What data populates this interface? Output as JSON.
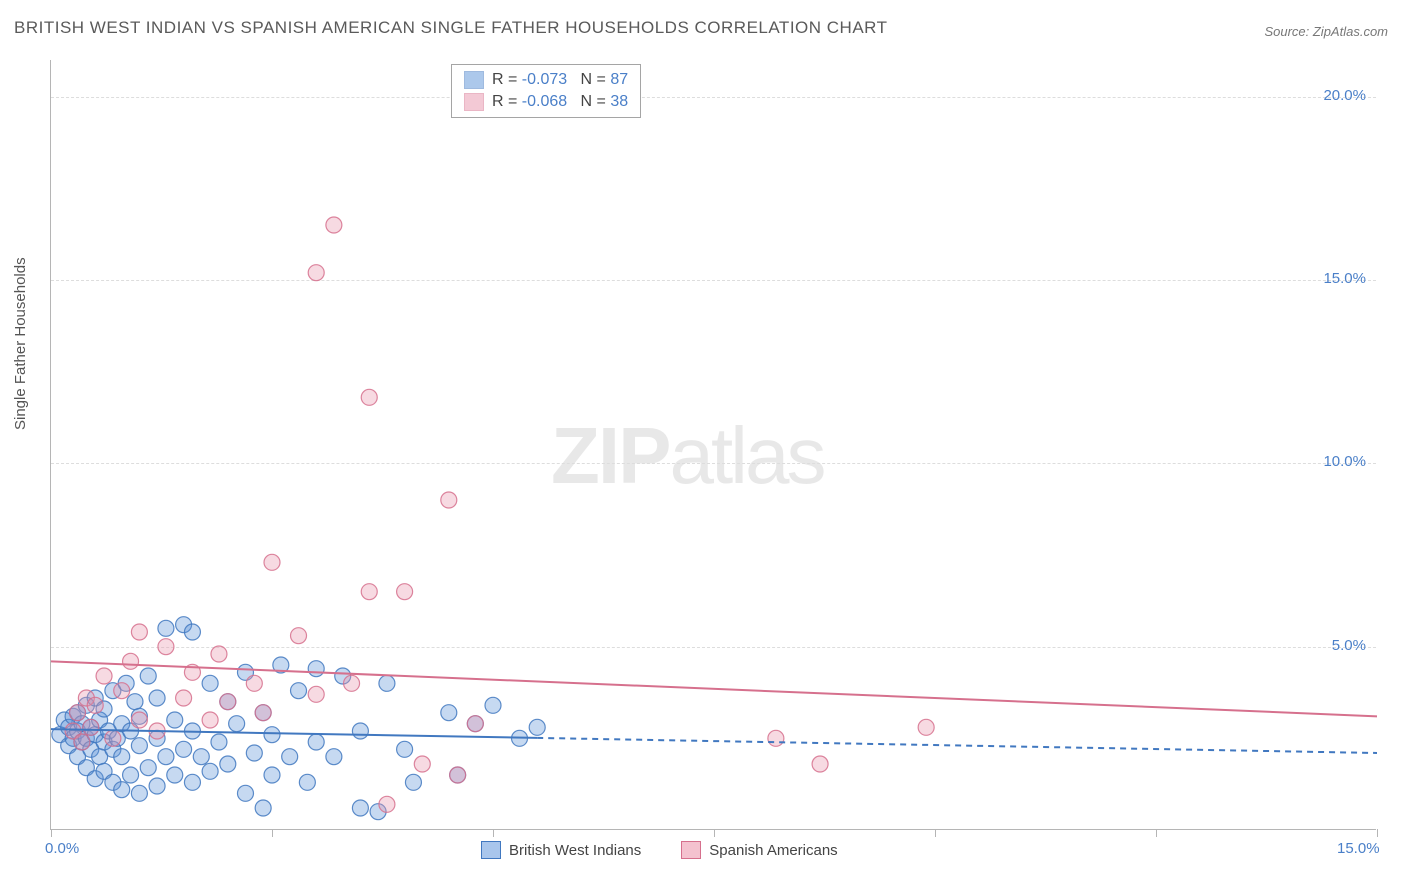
{
  "title": "BRITISH WEST INDIAN VS SPANISH AMERICAN SINGLE FATHER HOUSEHOLDS CORRELATION CHART",
  "source": "Source: ZipAtlas.com",
  "ylabel": "Single Father Households",
  "watermark_bold": "ZIP",
  "watermark_light": "atlas",
  "chart": {
    "type": "scatter",
    "background_color": "#ffffff",
    "grid_color": "#dddddd",
    "axis_color": "#b5b5b5",
    "text_color": "#555555",
    "tick_label_color": "#4a7fc8",
    "xlim": [
      0,
      15
    ],
    "ylim": [
      0,
      21
    ],
    "xticks": [
      0,
      5,
      10,
      15
    ],
    "xtick_labels": [
      "0.0%",
      "",
      "",
      "15.0%"
    ],
    "x_minor_ticks": [
      2.5,
      7.5,
      12.5
    ],
    "yticks": [
      5,
      10,
      15,
      20
    ],
    "ytick_labels": [
      "5.0%",
      "10.0%",
      "15.0%",
      "20.0%"
    ],
    "marker_radius": 8,
    "marker_fill_opacity": 0.35,
    "marker_stroke_opacity": 0.85,
    "marker_stroke_width": 1.2,
    "line_width": 2
  },
  "series": [
    {
      "name": "British West Indians",
      "color": "#5b93d8",
      "stroke": "#4178c0",
      "stats": {
        "r": "-0.073",
        "n": "87"
      },
      "trend": {
        "y_at_x0": 2.75,
        "y_at_xmax": 2.1,
        "solid_until_x": 5.5
      },
      "points": [
        [
          0.1,
          2.6
        ],
        [
          0.15,
          3.0
        ],
        [
          0.2,
          2.3
        ],
        [
          0.2,
          2.8
        ],
        [
          0.25,
          2.5
        ],
        [
          0.25,
          3.1
        ],
        [
          0.3,
          2.0
        ],
        [
          0.3,
          2.7
        ],
        [
          0.3,
          3.2
        ],
        [
          0.35,
          2.4
        ],
        [
          0.35,
          2.9
        ],
        [
          0.4,
          1.7
        ],
        [
          0.4,
          2.5
        ],
        [
          0.4,
          3.4
        ],
        [
          0.45,
          2.2
        ],
        [
          0.45,
          2.8
        ],
        [
          0.5,
          1.4
        ],
        [
          0.5,
          2.6
        ],
        [
          0.5,
          3.6
        ],
        [
          0.55,
          2.0
        ],
        [
          0.55,
          3.0
        ],
        [
          0.6,
          1.6
        ],
        [
          0.6,
          2.4
        ],
        [
          0.6,
          3.3
        ],
        [
          0.65,
          2.7
        ],
        [
          0.7,
          1.3
        ],
        [
          0.7,
          2.2
        ],
        [
          0.7,
          3.8
        ],
        [
          0.75,
          2.5
        ],
        [
          0.8,
          1.1
        ],
        [
          0.8,
          2.0
        ],
        [
          0.8,
          2.9
        ],
        [
          0.85,
          4.0
        ],
        [
          0.9,
          1.5
        ],
        [
          0.9,
          2.7
        ],
        [
          0.95,
          3.5
        ],
        [
          1.0,
          1.0
        ],
        [
          1.0,
          2.3
        ],
        [
          1.0,
          3.1
        ],
        [
          1.1,
          1.7
        ],
        [
          1.1,
          4.2
        ],
        [
          1.2,
          1.2
        ],
        [
          1.2,
          2.5
        ],
        [
          1.2,
          3.6
        ],
        [
          1.3,
          2.0
        ],
        [
          1.3,
          5.5
        ],
        [
          1.4,
          1.5
        ],
        [
          1.4,
          3.0
        ],
        [
          1.5,
          2.2
        ],
        [
          1.5,
          5.6
        ],
        [
          1.6,
          1.3
        ],
        [
          1.6,
          2.7
        ],
        [
          1.6,
          5.4
        ],
        [
          1.7,
          2.0
        ],
        [
          1.8,
          1.6
        ],
        [
          1.8,
          4.0
        ],
        [
          1.9,
          2.4
        ],
        [
          2.0,
          1.8
        ],
        [
          2.0,
          3.5
        ],
        [
          2.1,
          2.9
        ],
        [
          2.2,
          1.0
        ],
        [
          2.2,
          4.3
        ],
        [
          2.3,
          2.1
        ],
        [
          2.4,
          3.2
        ],
        [
          2.5,
          1.5
        ],
        [
          2.5,
          2.6
        ],
        [
          2.6,
          4.5
        ],
        [
          2.7,
          2.0
        ],
        [
          2.8,
          3.8
        ],
        [
          2.9,
          1.3
        ],
        [
          3.0,
          2.4
        ],
        [
          3.0,
          4.4
        ],
        [
          3.2,
          2.0
        ],
        [
          3.3,
          4.2
        ],
        [
          3.5,
          2.7
        ],
        [
          3.5,
          0.6
        ],
        [
          3.7,
          0.5
        ],
        [
          3.8,
          4.0
        ],
        [
          4.0,
          2.2
        ],
        [
          4.1,
          1.3
        ],
        [
          4.5,
          3.2
        ],
        [
          4.6,
          1.5
        ],
        [
          4.8,
          2.9
        ],
        [
          5.0,
          3.4
        ],
        [
          5.3,
          2.5
        ],
        [
          5.5,
          2.8
        ],
        [
          2.4,
          0.6
        ]
      ]
    },
    {
      "name": "Spanish Americans",
      "color": "#e994ac",
      "stroke": "#d6708d",
      "stats": {
        "r": "-0.068",
        "n": "38"
      },
      "trend": {
        "y_at_x0": 4.6,
        "y_at_xmax": 3.1,
        "solid_until_x": 15
      },
      "points": [
        [
          0.25,
          2.7
        ],
        [
          0.3,
          3.2
        ],
        [
          0.35,
          2.4
        ],
        [
          0.4,
          3.6
        ],
        [
          0.45,
          2.8
        ],
        [
          0.5,
          3.4
        ],
        [
          0.6,
          4.2
        ],
        [
          0.7,
          2.5
        ],
        [
          0.8,
          3.8
        ],
        [
          0.9,
          4.6
        ],
        [
          1.0,
          3.0
        ],
        [
          1.0,
          5.4
        ],
        [
          1.2,
          2.7
        ],
        [
          1.3,
          5.0
        ],
        [
          1.5,
          3.6
        ],
        [
          1.6,
          4.3
        ],
        [
          1.8,
          3.0
        ],
        [
          1.9,
          4.8
        ],
        [
          2.0,
          3.5
        ],
        [
          2.3,
          4.0
        ],
        [
          2.4,
          3.2
        ],
        [
          2.5,
          7.3
        ],
        [
          2.8,
          5.3
        ],
        [
          3.0,
          15.2
        ],
        [
          3.0,
          3.7
        ],
        [
          3.2,
          16.5
        ],
        [
          3.4,
          4.0
        ],
        [
          3.6,
          6.5
        ],
        [
          3.6,
          11.8
        ],
        [
          3.8,
          0.7
        ],
        [
          4.2,
          1.8
        ],
        [
          4.5,
          9.0
        ],
        [
          4.6,
          1.5
        ],
        [
          4.8,
          2.9
        ],
        [
          8.2,
          2.5
        ],
        [
          8.7,
          1.8
        ],
        [
          9.9,
          2.8
        ],
        [
          4.0,
          6.5
        ]
      ]
    }
  ],
  "legend": [
    {
      "label": "British West Indians",
      "fill": "#a9c6ec",
      "border": "#4178c0"
    },
    {
      "label": "Spanish Americans",
      "fill": "#f4c2cf",
      "border": "#d6708d"
    }
  ]
}
